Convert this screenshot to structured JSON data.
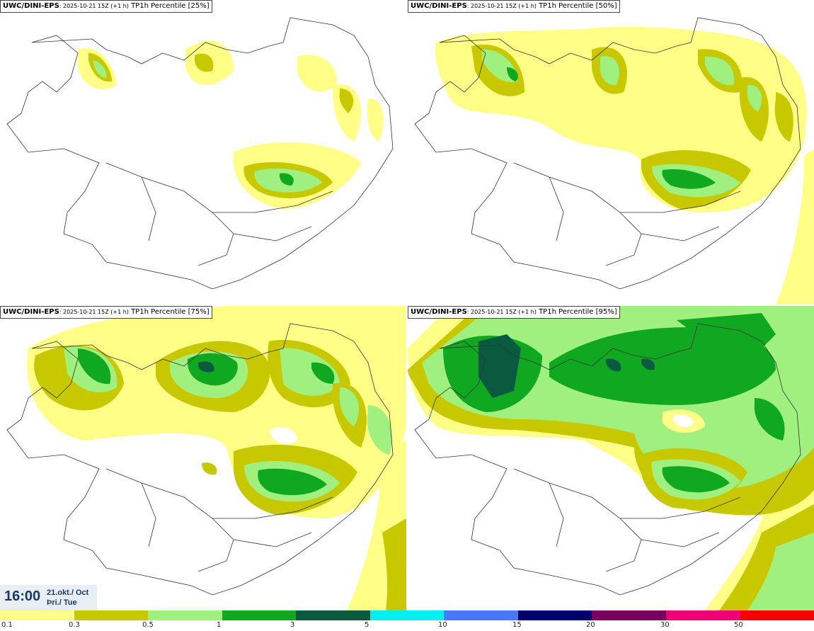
{
  "panels": [
    {
      "model": "UWC/DINI-EPS",
      "run": ": 2025-10-21 15Z (+1 h)",
      "param": "TP1h Percentile [25%]"
    },
    {
      "model": "UWC/DINI-EPS",
      "run": ": 2025-10-21 15Z (+1 h)",
      "param": "TP1h Percentile [50%]"
    },
    {
      "model": "UWC/DINI-EPS",
      "run": ": 2025-10-21 15Z (+1 h)",
      "param": "TP1h Percentile [75%]"
    },
    {
      "model": "UWC/DINI-EPS",
      "run": ": 2025-10-21 15Z (+1 h)",
      "param": "TP1h Percentile [95%]"
    }
  ],
  "time": {
    "clock": "16:00",
    "date_line": "21.okt./ Oct",
    "day_line": "Þri./ Tue"
  },
  "legend": {
    "labels": [
      "0.1",
      "0.3",
      "0.5",
      "1",
      "3",
      "5",
      "10",
      "15",
      "20",
      "30",
      "50"
    ],
    "colors": [
      "#ffff88",
      "#c8c800",
      "#a0f080",
      "#10a820",
      "#0a5a40",
      "#00f0f0",
      "#4878f8",
      "#00006c",
      "#780060",
      "#f00078",
      "#f80000"
    ]
  }
}
